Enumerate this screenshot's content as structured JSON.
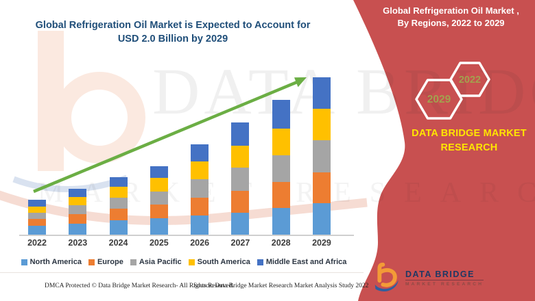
{
  "header": {
    "title_line1": "Global Refrigeration Oil Market is Expected to Account for",
    "title_line2": "USD 2.0 Billion by 2029",
    "banner_title_line1": "Global Refrigeration Oil Market ,",
    "banner_title_line2": "By Regions, 2022 to 2029"
  },
  "banner": {
    "color": "#C85050",
    "hexagons": [
      {
        "year": "2029"
      },
      {
        "year": "2022"
      }
    ],
    "brand_line1": "DATA BRIDGE MARKET",
    "brand_line2": "RESEARCH"
  },
  "chart_data": {
    "type": "bar",
    "stacked": true,
    "title": "Global Refrigeration Oil Market is Expected to Account for USD 2.0 Billion by 2029",
    "unit": "USD Billion",
    "categories": [
      "2022",
      "2023",
      "2024",
      "2025",
      "2026",
      "2027",
      "2028",
      "2029"
    ],
    "series": [
      {
        "name": "North America",
        "color": "#5B9BD5",
        "values": [
          0.11,
          0.14,
          0.18,
          0.21,
          0.24,
          0.28,
          0.34,
          0.4
        ]
      },
      {
        "name": "Europe",
        "color": "#ED7D31",
        "values": [
          0.09,
          0.12,
          0.15,
          0.17,
          0.23,
          0.28,
          0.33,
          0.39
        ]
      },
      {
        "name": "Asia Pacific",
        "color": "#A5A5A5",
        "values": [
          0.08,
          0.11,
          0.14,
          0.17,
          0.23,
          0.29,
          0.34,
          0.41
        ]
      },
      {
        "name": "South America",
        "color": "#FFC000",
        "values": [
          0.08,
          0.11,
          0.14,
          0.17,
          0.23,
          0.28,
          0.34,
          0.4
        ]
      },
      {
        "name": "Middle East and Africa",
        "color": "#4472C4",
        "values": [
          0.08,
          0.1,
          0.12,
          0.15,
          0.22,
          0.3,
          0.36,
          0.4
        ]
      }
    ],
    "totals": [
      0.44,
      0.58,
      0.73,
      0.87,
      1.15,
      1.43,
      1.71,
      2.0
    ],
    "trend_arrow": true,
    "trend_arrow_color": "#6BAE44",
    "legend_position": "bottom",
    "axes": {
      "x_labels_visible": true,
      "y_axis_visible": false,
      "gridlines": false
    }
  },
  "watermark": {
    "line1": "DATA BRIDGE",
    "line2": "MARKET RESEARCH"
  },
  "footer": {
    "left": "DMCA Protected © Data Bridge Market Research- All Rights Reserved.",
    "right": "Source: Data Bridge Market Research Market Analysis Study 2022"
  },
  "logo": {
    "name": "DATA BRIDGE",
    "subtitle": "MARKET RESEARCH"
  }
}
